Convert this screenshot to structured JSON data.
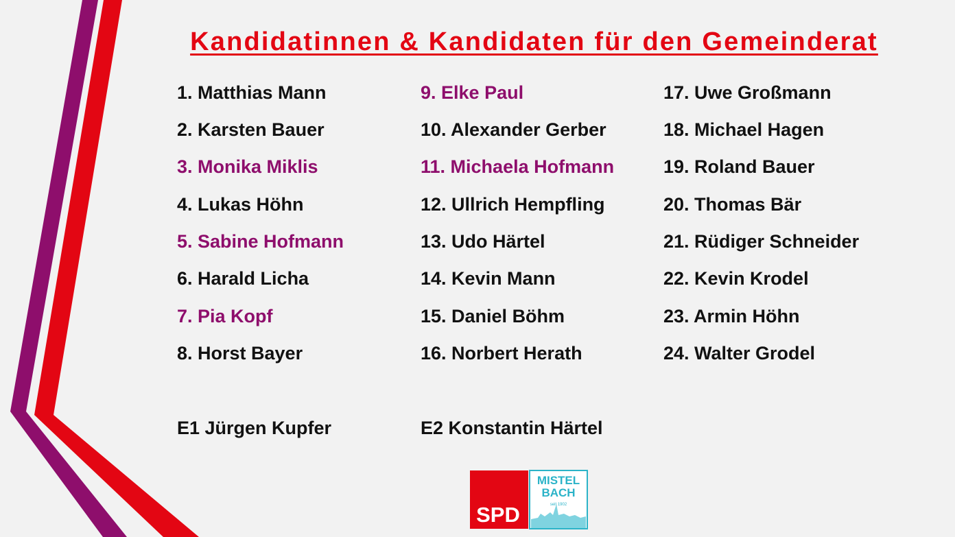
{
  "title": "Kandidatinnen & Kandidaten für den Gemeinderat",
  "columns": [
    [
      "1. Matthias Mann",
      "2. Karsten Bauer",
      "3. Monika Miklis",
      "4. Lukas Höhn",
      "5. Sabine Hofmann",
      "6. Harald Licha",
      "7. Pia Kopf",
      "8. Horst Bayer"
    ],
    [
      "9. Elke Paul",
      "10. Alexander Gerber",
      "11. Michaela Hofmann",
      "12. Ullrich Hempfling",
      "13. Udo Härtel",
      "14. Kevin Mann",
      "15. Daniel Böhm",
      "16. Norbert Herath"
    ],
    [
      "17. Uwe Großmann",
      "18. Michael Hagen",
      "19. Roland Bauer",
      "20. Thomas Bär",
      "21. Rüdiger Schneider",
      "22. Kevin Krodel",
      "23. Armin Höhn",
      "24. Walter Grodel"
    ]
  ],
  "substitutes": [
    "E1 Jürgen Kupfer",
    "E2 Konstantin Härtel"
  ],
  "logo": {
    "party": "SPD",
    "town": [
      "MISTEL",
      "BACH"
    ],
    "since": "seit 1902"
  }
}
